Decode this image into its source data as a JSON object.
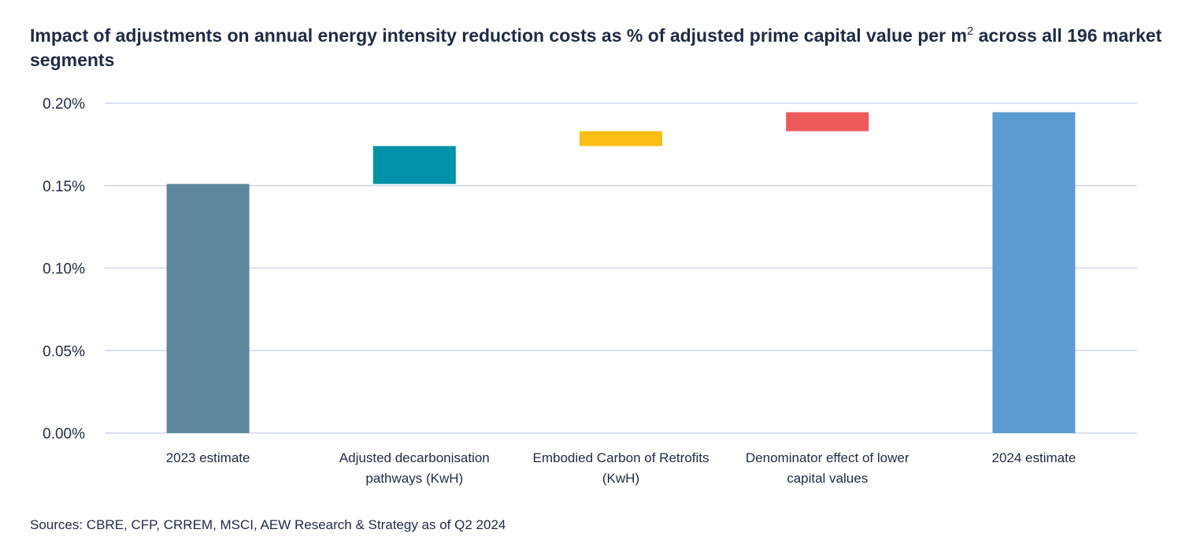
{
  "title": {
    "text": "Impact of adjustments on annual energy intensity reduction costs as % of adjusted prime capital value per m",
    "superscript": "2",
    "text_after": " across all 196 market segments"
  },
  "source": "Sources: CBRE, CFP, CRREM, MSCI, AEW Research & Strategy as of Q2 2024",
  "chart_data": {
    "type": "bar",
    "subtype": "waterfall",
    "title": "Impact of adjustments on annual energy intensity reduction costs as % of adjusted prime capital value per m2 across all 196 market segments",
    "categories": [
      [
        "2023 estimate"
      ],
      [
        "Adjusted decarbonisation",
        "pathways (KwH)"
      ],
      [
        "Embodied Carbon of Retrofits",
        "(KwH)"
      ],
      [
        "Denominator effect of lower",
        "capital values"
      ],
      [
        "2024 estimate"
      ]
    ],
    "bars": [
      {
        "base": 0.0,
        "value": 0.151,
        "type": "total",
        "color": "#5e879f"
      },
      {
        "base": 0.151,
        "value": 0.023,
        "type": "increase",
        "color": "#0092a8"
      },
      {
        "base": 0.174,
        "value": 0.009,
        "type": "increase",
        "color": "#fbbe14"
      },
      {
        "base": 0.183,
        "value": 0.0115,
        "type": "increase",
        "color": "#ee5a5a"
      },
      {
        "base": 0.0,
        "value": 0.1945,
        "type": "total",
        "color": "#5a9bd3"
      }
    ],
    "y_ticks": [
      "0.00%",
      "0.05%",
      "0.10%",
      "0.15%",
      "0.20%"
    ],
    "y_tick_values": [
      0.0,
      0.05,
      0.1,
      0.15,
      0.2
    ],
    "ylim": [
      0,
      0.2
    ],
    "xlabel": "",
    "ylabel": "",
    "grid": true,
    "grid_color": "#cfd6ea",
    "legend": "none"
  }
}
